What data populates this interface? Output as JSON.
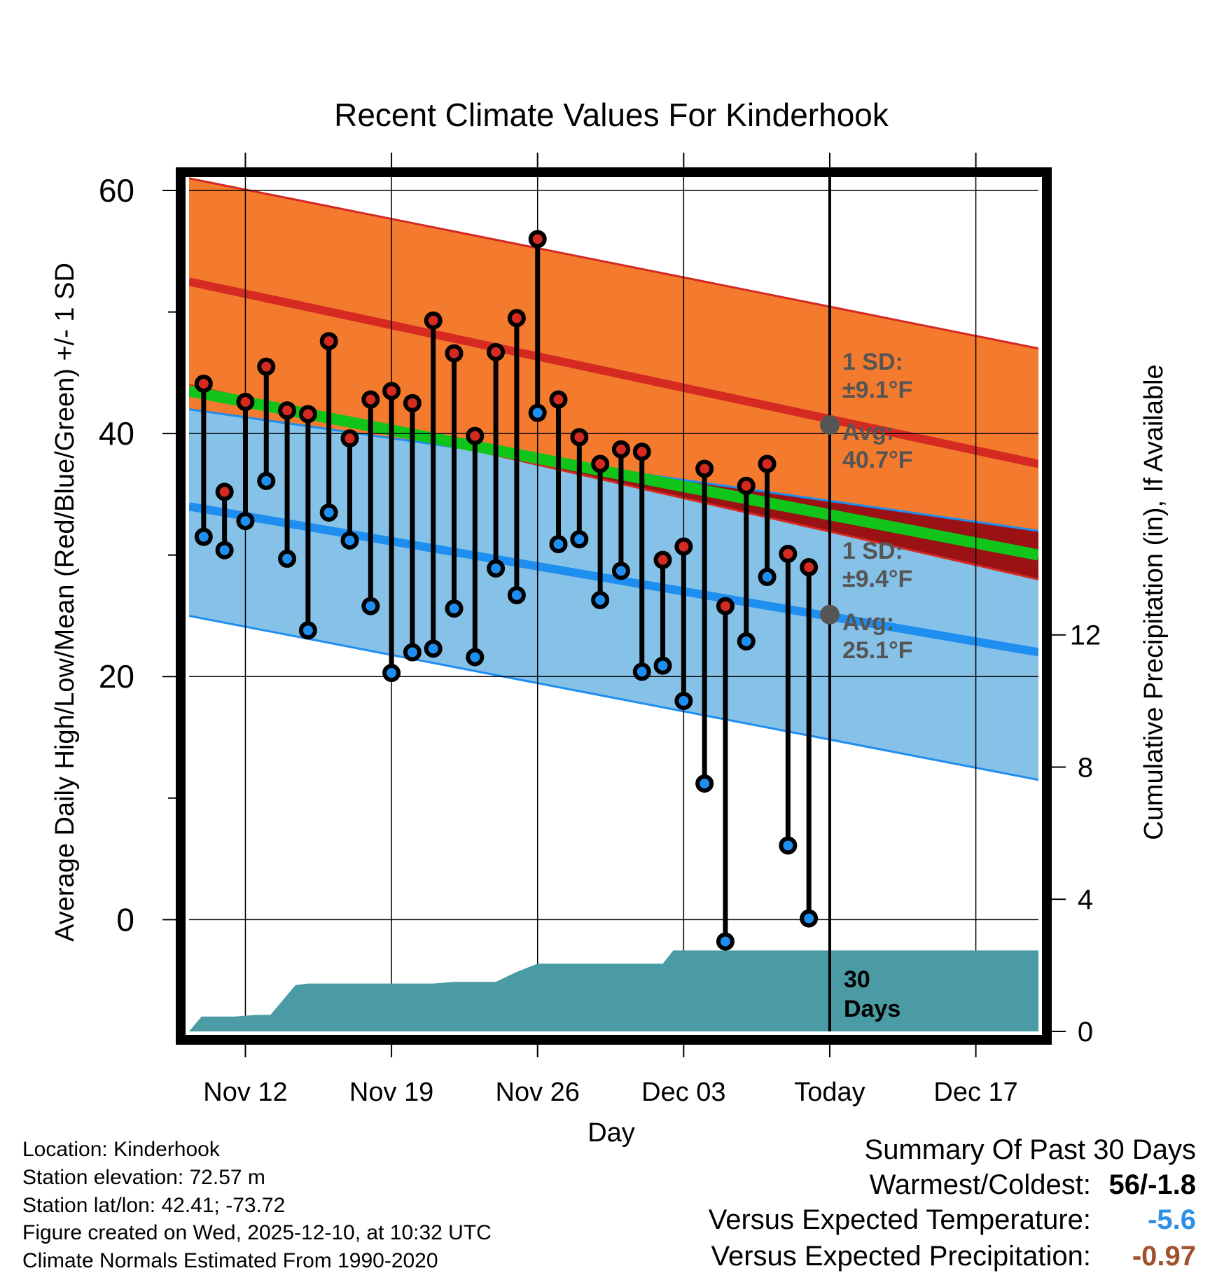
{
  "chart_data": {
    "type": "line",
    "title": "Recent Climate Values For Kinderhook",
    "xlabel": "Day",
    "ylabel": "Average Daily High/Low/Mean (Red/Blue/Green) +/- 1 SD",
    "y2label": "Cumulative Precipitation (in), If Available",
    "x_tick_labels": [
      "Nov 12",
      "Nov 19",
      "Nov 26",
      "Dec 03",
      "Today",
      "Dec 17"
    ],
    "x_tick_days": [
      0,
      7,
      14,
      21,
      28,
      35
    ],
    "x_range_days": [
      -2.7,
      38
    ],
    "y_ticks": [
      0,
      20,
      40,
      60
    ],
    "y_minor_ticks": [
      10,
      30,
      50
    ],
    "ylim": [
      -9.2,
      61.5
    ],
    "y2_ticks": [
      0,
      4,
      8,
      12
    ],
    "y2lim": [
      0,
      26
    ],
    "normals": {
      "days": [
        -2.7,
        38
      ],
      "high_plus_sd": [
        61.0,
        47.0
      ],
      "high_avg": [
        52.5,
        37.5
      ],
      "high_minus_sd": [
        44.0,
        28.0
      ],
      "mean_avg": [
        43.5,
        30.0
      ],
      "low_plus_sd": [
        42.0,
        32.0
      ],
      "low_avg": [
        34.0,
        22.0
      ],
      "low_minus_sd": [
        25.0,
        11.5
      ]
    },
    "observations": {
      "days": [
        -2,
        -1,
        0,
        1,
        2,
        3,
        4,
        5,
        6,
        7,
        8,
        9,
        10,
        11,
        12,
        13,
        14,
        15,
        16,
        17,
        18,
        19,
        20,
        21,
        22,
        23,
        24,
        25,
        26,
        27
      ],
      "highs": [
        44.1,
        35.2,
        42.6,
        45.5,
        41.9,
        41.6,
        47.6,
        39.6,
        42.8,
        43.5,
        42.5,
        49.3,
        46.6,
        39.8,
        46.7,
        49.5,
        56.0,
        42.8,
        39.7,
        37.5,
        38.7,
        38.5,
        29.6,
        30.7,
        37.1,
        25.8,
        35.7,
        37.5,
        30.1,
        29.0
      ],
      "lows": [
        31.5,
        30.4,
        32.8,
        36.1,
        29.7,
        23.8,
        33.5,
        31.2,
        25.8,
        20.3,
        22.0,
        22.3,
        25.6,
        21.6,
        28.9,
        26.7,
        41.7,
        30.9,
        31.3,
        26.3,
        28.7,
        20.4,
        20.9,
        18.0,
        11.2,
        -1.8,
        22.9,
        28.2,
        6.1,
        0.1
      ]
    },
    "precipitation": {
      "days": [
        -2.7,
        -2.1,
        -0.5,
        0.5,
        1.2,
        2.4,
        3.0,
        4.0,
        5.0,
        6.0,
        7.0,
        8.0,
        9.0,
        10.0,
        11.0,
        12.0,
        13.0,
        14.0,
        15.0,
        16.0,
        17.0,
        18.0,
        19.0,
        20.0,
        20.5,
        38.0
      ],
      "cumulative_in": [
        0.0,
        0.45,
        0.45,
        0.5,
        0.5,
        1.4,
        1.45,
        1.45,
        1.45,
        1.45,
        1.45,
        1.45,
        1.45,
        1.5,
        1.5,
        1.5,
        1.8,
        2.05,
        2.05,
        2.05,
        2.05,
        2.05,
        2.05,
        2.05,
        2.45,
        2.45
      ]
    },
    "today_day": 28,
    "annotations": {
      "high_sd": "1 SD:\n±9.1°F",
      "high_avg": "Avg:\n40.7°F",
      "high_avg_value": 40.7,
      "low_sd": "1 SD:\n±9.4°F",
      "low_avg": "Avg:\n25.1°F",
      "low_avg_value": 25.1,
      "period": "30\nDays"
    },
    "colors": {
      "high_band": "#f47a2e",
      "high_line": "#d42a22",
      "low_band": "#86c1e8",
      "low_line": "#1e8ef0",
      "mean_line": "#10c41a",
      "overlap": "#9a1214",
      "precip": "#4a9ba4",
      "high_marker": "#d42a22",
      "low_marker": "#1e8ef0",
      "annotation": "#555555",
      "today_dot": "#555555"
    }
  },
  "info": {
    "location": "Location: Kinderhook",
    "elevation": "Station elevation: 72.57 m",
    "latlon": "Station lat/lon: 42.41; -73.72",
    "created": "Figure created on Wed, 2025-12-10, at 10:32 UTC",
    "normals": "Climate Normals Estimated From 1990-2020"
  },
  "summary": {
    "title": "Summary Of Past 30 Days",
    "warmest_label": "Warmest/Coldest:",
    "warmest_value": "56/-1.8",
    "temp_label": "Versus Expected Temperature:",
    "temp_value": "-5.6",
    "temp_color": "#2d8fe6",
    "precip_label": "Versus Expected Precipitation:",
    "precip_value": "-0.97",
    "precip_color": "#a0512c"
  }
}
